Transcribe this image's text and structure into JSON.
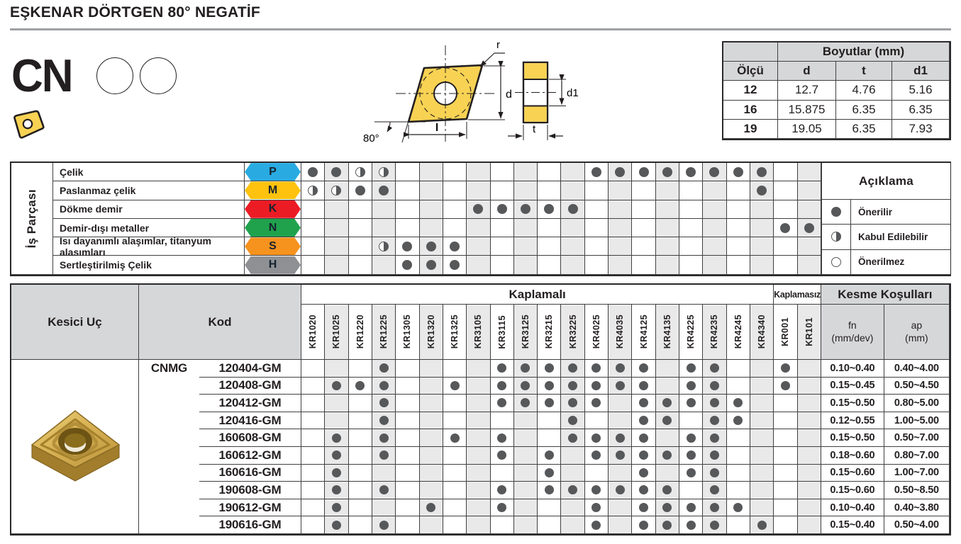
{
  "page": {
    "title": "EŞKENAR DÖRTGEN 80° NEGATİF",
    "insert_code": "CN"
  },
  "drawing": {
    "r": "r",
    "d": "d",
    "d1": "d1",
    "l": "l",
    "t": "t",
    "angle": "80°"
  },
  "dimensions_table": {
    "header": "Boyutlar (mm)",
    "col1": "Ölçü",
    "cols": [
      "d",
      "t",
      "d1"
    ],
    "rows": [
      [
        "12",
        "12.7",
        "4.76",
        "5.16"
      ],
      [
        "16",
        "15.875",
        "6.35",
        "6.35"
      ],
      [
        "19",
        "19.05",
        "6.35",
        "7.93"
      ]
    ]
  },
  "grades": [
    "KR1020",
    "KR1025",
    "KR1220",
    "KR1225",
    "KR1305",
    "KR1320",
    "KR1325",
    "KR3105",
    "KR3115",
    "KR3125",
    "KR3215",
    "KR3225",
    "KR4025",
    "KR4035",
    "KR4125",
    "KR4135",
    "KR4225",
    "KR4235",
    "KR4245",
    "KR4340",
    "KR001",
    "KR101"
  ],
  "material_table": {
    "side_label": "İş Parçası",
    "rows": [
      {
        "label": "Çelik",
        "letter": "P",
        "color": "#29ABE2",
        "full": [
          0,
          1,
          12,
          13,
          14,
          15,
          16,
          17,
          18,
          19
        ],
        "half": [
          2,
          3
        ]
      },
      {
        "label": "Paslanmaz çelik",
        "letter": "M",
        "color": "#FFC20E",
        "full": [
          2,
          3,
          19
        ],
        "half": [
          0,
          1
        ]
      },
      {
        "label": "Dökme demir",
        "letter": "K",
        "color": "#EC1C24",
        "full": [
          7,
          8,
          9,
          10,
          11
        ],
        "half": []
      },
      {
        "label": "Demir-dışı metaller",
        "letter": "N",
        "color": "#20A24D",
        "full": [
          20,
          21
        ],
        "half": []
      },
      {
        "label": "Isı dayanımlı alaşımlar, titanyum alaşımları",
        "letter": "S",
        "color": "#F6921E",
        "full": [
          4,
          5,
          6
        ],
        "half": [
          3
        ]
      },
      {
        "label": "Sertleştirilmiş Çelik",
        "letter": "H",
        "color": "#8E9093",
        "full": [
          4,
          5,
          6
        ],
        "half": []
      }
    ],
    "legend": {
      "title": "Açıklama",
      "items": [
        {
          "icon": "full",
          "label": "Önerilir"
        },
        {
          "icon": "half",
          "label": "Kabul Edilebilir"
        },
        {
          "icon": "none",
          "label": "Önerilmez"
        }
      ]
    }
  },
  "products_table": {
    "headers": {
      "insert": "Kesici Uç",
      "code": "Kod",
      "coated": "Kaplamalı",
      "uncoated": "Kaplamasız",
      "cutting": "Kesme Koşulları",
      "fn": "fn",
      "fn_unit": "(mm/dev)",
      "ap": "ap",
      "ap_unit": "(mm)"
    },
    "series": "CNMG",
    "rows": [
      {
        "code": "120404-GM",
        "dots": [
          3,
          8,
          9,
          10,
          11,
          12,
          13,
          14,
          16,
          17,
          20
        ],
        "fn": "0.10~0.40",
        "ap": "0.40~4.00"
      },
      {
        "code": "120408-GM",
        "dots": [
          1,
          2,
          3,
          6,
          8,
          9,
          10,
          11,
          12,
          13,
          14,
          16,
          17,
          20
        ],
        "fn": "0.15~0.45",
        "ap": "0.50~4.50"
      },
      {
        "code": "120412-GM",
        "dots": [
          3,
          8,
          9,
          10,
          11,
          12,
          14,
          15,
          16,
          17,
          18
        ],
        "fn": "0.15~0.50",
        "ap": "0.80~5.00"
      },
      {
        "code": "120416-GM",
        "dots": [
          3,
          11,
          14,
          15,
          17,
          18
        ],
        "fn": "0.12~0.55",
        "ap": "1.00~5.00"
      },
      {
        "code": "160608-GM",
        "dots": [
          1,
          3,
          6,
          8,
          11,
          12,
          13,
          14,
          16,
          17
        ],
        "fn": "0.15~0.50",
        "ap": "0.50~7.00"
      },
      {
        "code": "160612-GM",
        "dots": [
          1,
          3,
          8,
          10,
          12,
          13,
          14,
          15,
          16,
          17
        ],
        "fn": "0.18~0.60",
        "ap": "0.80~7.00"
      },
      {
        "code": "160616-GM",
        "dots": [
          1,
          10,
          14,
          16,
          17
        ],
        "fn": "0.15~0.60",
        "ap": "1.00~7.00"
      },
      {
        "code": "190608-GM",
        "dots": [
          1,
          3,
          8,
          10,
          11,
          12,
          13,
          14,
          15,
          17
        ],
        "fn": "0.15~0.60",
        "ap": "0.50~8.50"
      },
      {
        "code": "190612-GM",
        "dots": [
          1,
          5,
          8,
          12,
          14,
          15,
          16,
          17,
          18
        ],
        "fn": "0.10~0.40",
        "ap": "0.40~3.80"
      },
      {
        "code": "190616-GM",
        "dots": [
          1,
          3,
          12,
          14,
          15,
          16,
          17,
          19
        ],
        "fn": "0.15~0.40",
        "ap": "0.50~4.00"
      }
    ]
  },
  "colors": {
    "dot": "#57585a",
    "header_bg": "#d6d7d8",
    "column_shade": "#e9e9ea",
    "insert_yellow": "#f8d253",
    "rule_gray": "#9fa1a4"
  }
}
